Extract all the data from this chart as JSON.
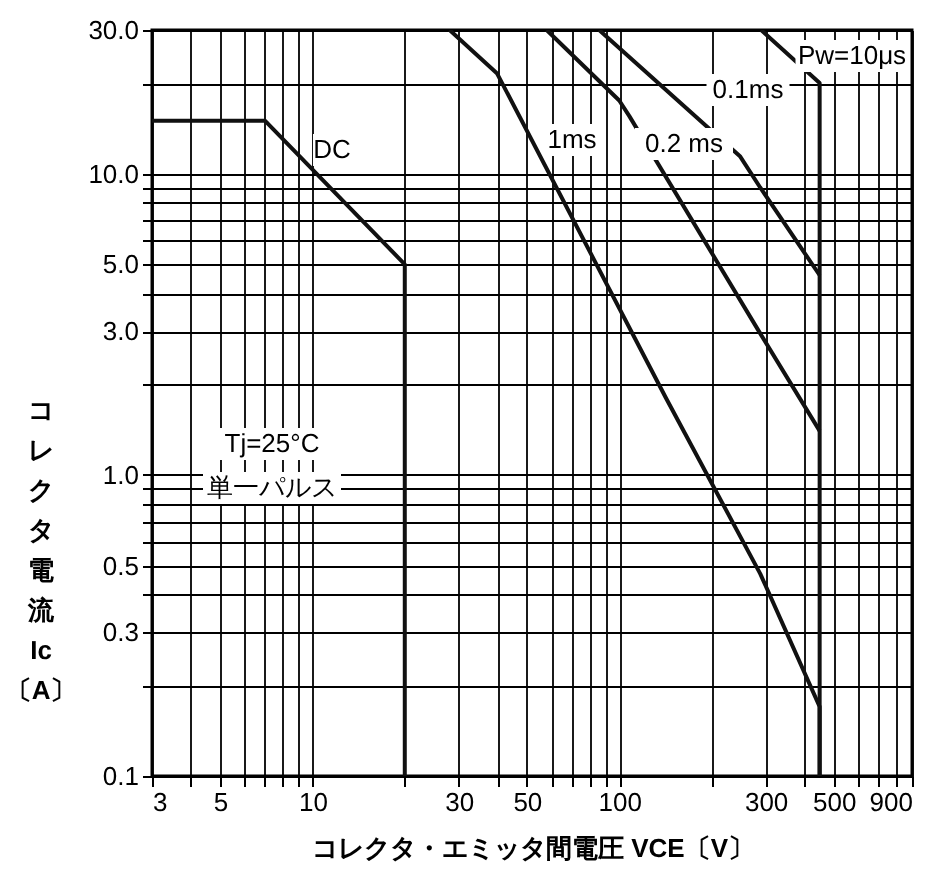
{
  "chart_data": {
    "type": "line",
    "xlabel": "コレクタ・エミッタ間電圧 VCE〔V〕",
    "ylabel": "コレクタ電流 Ic 〔A〕",
    "log": "xy",
    "grid": true,
    "marker": "none",
    "line_style": "solid",
    "xlim": [
      3,
      900
    ],
    "ylim": [
      0.1,
      30
    ],
    "xticks": [
      3,
      {
        "value": 4,
        "label": null
      },
      5,
      {
        "value": 6,
        "label": null
      },
      {
        "value": 7,
        "label": null
      },
      {
        "value": 8,
        "label": null
      },
      {
        "value": 9,
        "label": null
      },
      10,
      {
        "value": 20,
        "label": null
      },
      30,
      {
        "value": 40,
        "label": null
      },
      50,
      {
        "value": 60,
        "label": null
      },
      {
        "value": 70,
        "label": null
      },
      {
        "value": 80,
        "label": null
      },
      {
        "value": 90,
        "label": null
      },
      100,
      {
        "value": 200,
        "label": null
      },
      300,
      {
        "value": 400,
        "label": null
      },
      500,
      {
        "value": 600,
        "label": null
      },
      {
        "value": 700,
        "label": null
      },
      {
        "value": 800,
        "label": null
      },
      900
    ],
    "yticks": [
      0.1,
      {
        "value": 0.2,
        "label": null
      },
      0.3,
      {
        "value": 0.4,
        "label": null
      },
      0.5,
      {
        "value": 0.6,
        "label": null
      },
      {
        "value": 0.7,
        "label": null
      },
      {
        "value": 0.8,
        "label": null
      },
      {
        "value": 0.9,
        "label": null
      },
      {
        "value": 1,
        "label": "1.0"
      },
      {
        "value": 2,
        "label": null
      },
      {
        "value": 3,
        "label": "3.0"
      },
      {
        "value": 4,
        "label": null
      },
      {
        "value": 5,
        "label": "5.0"
      },
      {
        "value": 6,
        "label": null
      },
      {
        "value": 7,
        "label": null
      },
      {
        "value": 8,
        "label": null
      },
      {
        "value": 9,
        "label": null
      },
      {
        "value": 10,
        "label": "10.0"
      },
      {
        "value": 20,
        "label": null
      },
      {
        "value": 30,
        "label": "30.0"
      }
    ],
    "series": [
      {
        "color": "#111111",
        "x": [
          3,
          7,
          20,
          20
        ],
        "values": [
          15,
          15,
          5,
          0.1
        ]
      },
      {
        "color": "#111111",
        "x": [
          28,
          40,
          142,
          288,
          450,
          450
        ],
        "values": [
          30,
          21.5,
          1.8,
          0.47,
          0.17,
          0.1
        ]
      },
      {
        "color": "#111111",
        "x": [
          58,
          100,
          108,
          288,
          450
        ],
        "values": [
          30,
          17.5,
          15.5,
          2.95,
          1.4
        ]
      },
      {
        "color": "#111111",
        "x": [
          86,
          248,
          288,
          450
        ],
        "values": [
          30,
          11.4,
          9,
          4.6
        ]
      },
      {
        "color": "#111111",
        "x": [
          290,
          450,
          450
        ],
        "values": [
          30,
          20,
          0.1
        ]
      }
    ],
    "annotations": [
      "DC",
      "1ms",
      "0.2 ms",
      "0.1ms",
      "Pw=10μs",
      "Tj=25°C",
      "単一パルス"
    ]
  }
}
